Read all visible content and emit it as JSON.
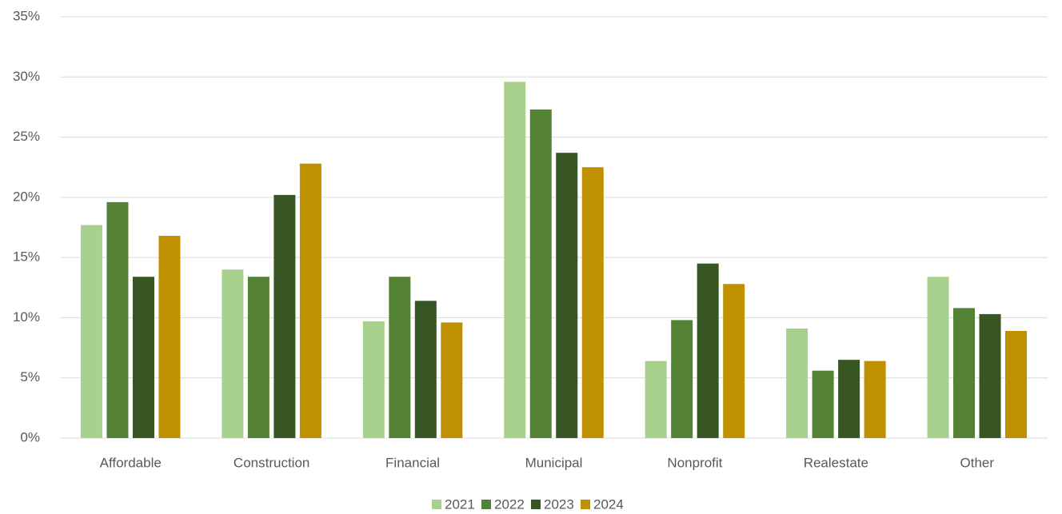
{
  "chart_data": {
    "type": "bar",
    "categories": [
      "Affordable",
      "Construction",
      "Financial",
      "Municipal",
      "Nonprofit",
      "Realestate",
      "Other"
    ],
    "series": [
      {
        "name": "2021",
        "color": "#a9d18e",
        "values": [
          17.7,
          14.0,
          9.7,
          29.6,
          6.4,
          9.1,
          13.4
        ]
      },
      {
        "name": "2022",
        "color": "#548235",
        "values": [
          19.6,
          13.4,
          13.4,
          27.3,
          9.8,
          5.6,
          10.8
        ]
      },
      {
        "name": "2023",
        "color": "#375623",
        "values": [
          13.4,
          20.2,
          11.4,
          23.7,
          14.5,
          6.5,
          10.3
        ]
      },
      {
        "name": "2024",
        "color": "#bf9000",
        "values": [
          16.8,
          22.8,
          9.6,
          22.5,
          12.8,
          6.4,
          8.9
        ]
      }
    ],
    "ylim": [
      0,
      35
    ],
    "yticks": [
      {
        "value": 0,
        "label": "0%"
      },
      {
        "value": 5,
        "label": "5%"
      },
      {
        "value": 10,
        "label": "10%"
      },
      {
        "value": 15,
        "label": "15%"
      },
      {
        "value": 20,
        "label": "20%"
      },
      {
        "value": 25,
        "label": "25%"
      },
      {
        "value": 30,
        "label": "30%"
      },
      {
        "value": 35,
        "label": "35%"
      }
    ],
    "grid": true,
    "legend": "bottom"
  }
}
